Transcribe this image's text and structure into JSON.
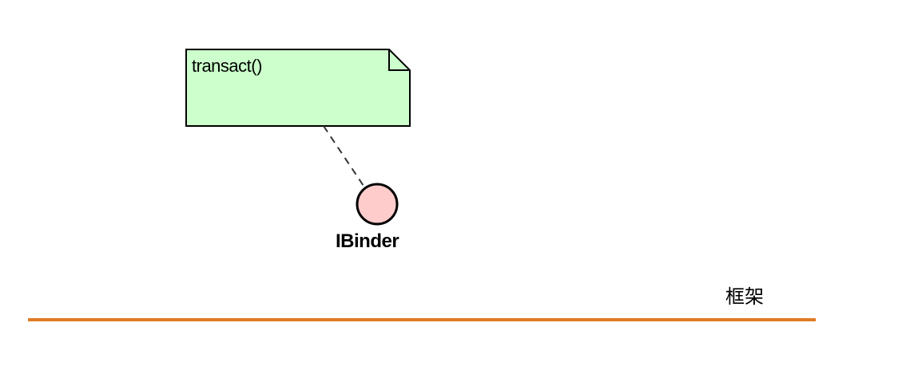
{
  "note": {
    "text": "transact()",
    "fill_color": "#ccffcc",
    "border_color": "#000000"
  },
  "interface": {
    "name": "IBinder",
    "fill_color": "#ffcccc",
    "border_color": "#000000"
  },
  "connector": {
    "style": "dashed",
    "color": "#333333"
  },
  "boundary": {
    "label": "框架",
    "line_color": "#e07b24"
  }
}
